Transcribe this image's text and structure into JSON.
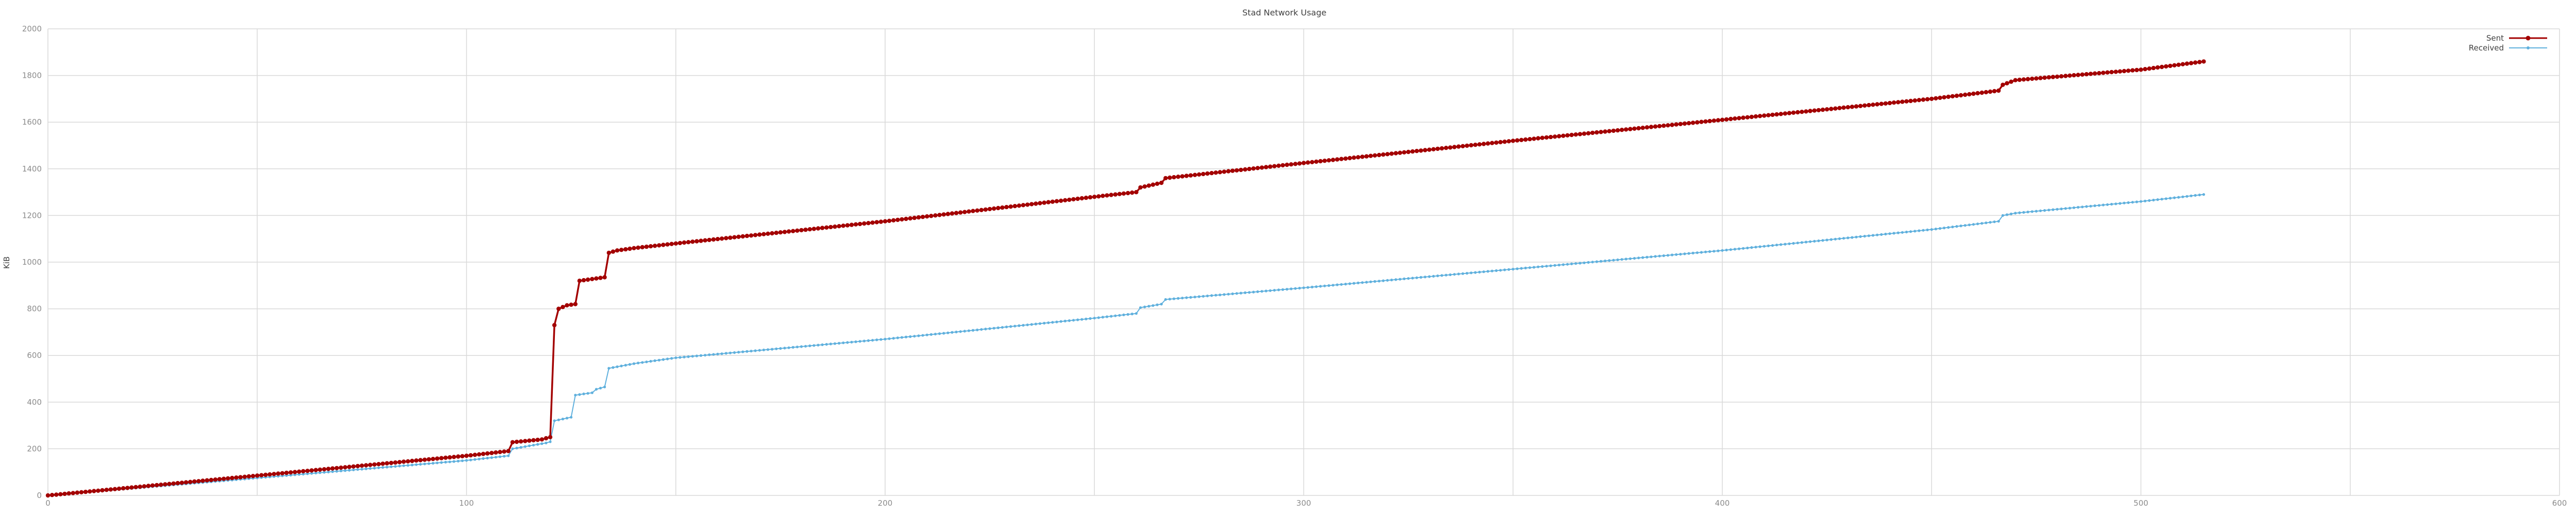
{
  "chart_data": {
    "type": "line",
    "title": "Stad Network Usage",
    "xlabel": "",
    "ylabel": "KiB",
    "xlim": [
      0,
      600
    ],
    "ylim": [
      0,
      2000
    ],
    "xticks": [
      "0",
      "100",
      "200",
      "300",
      "400",
      "500",
      "600"
    ],
    "yticks": [
      "0",
      "200",
      "400",
      "600",
      "800",
      "1000",
      "1200",
      "1400",
      "1600",
      "1800",
      "2000"
    ],
    "grid": true,
    "legend_position": "top-right",
    "series": [
      {
        "name": "Sent",
        "color": "#a30000",
        "marker": "circle",
        "points": [
          [
            0,
            0
          ],
          [
            10,
            17
          ],
          [
            20,
            34
          ],
          [
            40,
            68
          ],
          [
            60,
            102
          ],
          [
            80,
            136
          ],
          [
            100,
            170
          ],
          [
            110,
            190
          ],
          [
            111,
            228
          ],
          [
            118,
            240
          ],
          [
            119,
            245
          ],
          [
            120,
            250
          ],
          [
            121,
            730
          ],
          [
            122,
            800
          ],
          [
            124,
            815
          ],
          [
            126,
            820
          ],
          [
            127,
            920
          ],
          [
            129,
            925
          ],
          [
            133,
            935
          ],
          [
            134,
            1040
          ],
          [
            136,
            1050
          ],
          [
            140,
            1060
          ],
          [
            150,
            1080
          ],
          [
            200,
            1175
          ],
          [
            250,
            1280
          ],
          [
            260,
            1300
          ],
          [
            261,
            1320
          ],
          [
            266,
            1340
          ],
          [
            267,
            1360
          ],
          [
            300,
            1425
          ],
          [
            350,
            1520
          ],
          [
            400,
            1610
          ],
          [
            450,
            1700
          ],
          [
            466,
            1735
          ],
          [
            467,
            1760
          ],
          [
            470,
            1780
          ],
          [
            500,
            1825
          ],
          [
            515,
            1860
          ]
        ]
      },
      {
        "name": "Received",
        "color": "#5fb0dd",
        "marker": "circle",
        "points": [
          [
            0,
            0
          ],
          [
            20,
            30
          ],
          [
            50,
            75
          ],
          [
            100,
            150
          ],
          [
            110,
            170
          ],
          [
            111,
            200
          ],
          [
            119,
            225
          ],
          [
            120,
            230
          ],
          [
            121,
            320
          ],
          [
            125,
            335
          ],
          [
            126,
            430
          ],
          [
            130,
            440
          ],
          [
            131,
            455
          ],
          [
            133,
            465
          ],
          [
            134,
            545
          ],
          [
            140,
            565
          ],
          [
            150,
            590
          ],
          [
            200,
            670
          ],
          [
            250,
            760
          ],
          [
            260,
            780
          ],
          [
            261,
            805
          ],
          [
            266,
            820
          ],
          [
            267,
            840
          ],
          [
            300,
            890
          ],
          [
            350,
            970
          ],
          [
            400,
            1050
          ],
          [
            450,
            1140
          ],
          [
            466,
            1175
          ],
          [
            467,
            1200
          ],
          [
            470,
            1210
          ],
          [
            500,
            1260
          ],
          [
            515,
            1290
          ]
        ]
      }
    ]
  }
}
